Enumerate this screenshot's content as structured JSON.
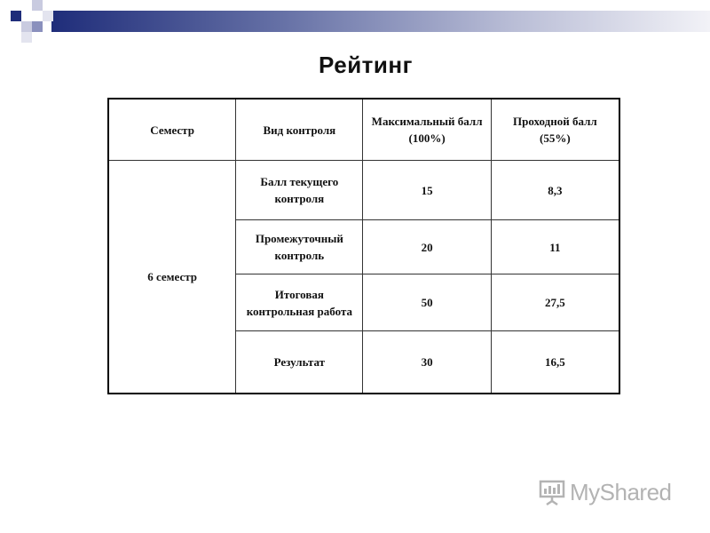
{
  "title": "Рейтинг",
  "table": {
    "headers": [
      "Семестр",
      "Вид контроля",
      "Максимальный балл (100%)",
      "Проходной балл (55%)"
    ],
    "semester": "6 семестр",
    "rows": [
      {
        "kind": "Балл текущего контроля",
        "max": "15",
        "pass": "8,3"
      },
      {
        "kind": "Промежуточный контроль",
        "max": "20",
        "pass": "11"
      },
      {
        "kind": "Итоговая контрольная работа",
        "max": "50",
        "pass": "27,5"
      },
      {
        "kind": "Результат",
        "max": "30",
        "pass": "16,5"
      }
    ]
  },
  "watermark": {
    "text": "MyShared",
    "icon": "presentation-board-icon"
  },
  "colors": {
    "band_dark": "#1f2d7a",
    "band_light": "#f2f2f7",
    "watermark": "#b3b3b3"
  }
}
